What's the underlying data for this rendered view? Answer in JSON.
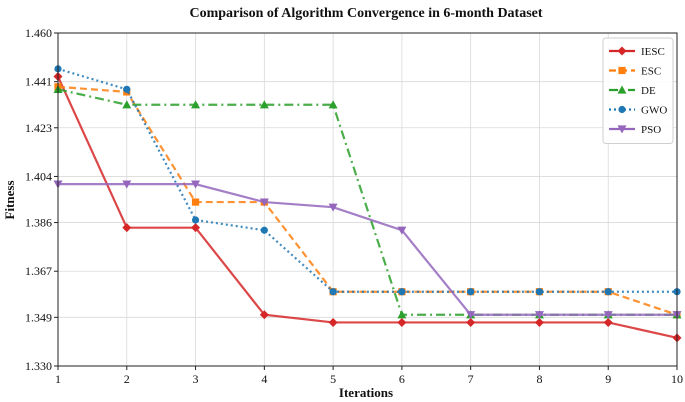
{
  "chart_data": {
    "type": "line",
    "title": "Comparison of Algorithm Convergence in 6-month Dataset",
    "xlabel": "Iterations",
    "ylabel": "Fitness",
    "x": [
      1,
      2,
      3,
      4,
      5,
      6,
      7,
      8,
      9,
      10
    ],
    "xlim": [
      1,
      10
    ],
    "ylim": [
      1.33,
      1.46
    ],
    "xticks": [
      "1",
      "2",
      "3",
      "4",
      "5",
      "6",
      "7",
      "8",
      "9",
      "10"
    ],
    "yticks": [
      "1.330",
      "1.349",
      "1.367",
      "1.386",
      "1.404",
      "1.423",
      "1.441",
      "1.460"
    ],
    "grid": true,
    "legend_position": "top-right",
    "series": [
      {
        "name": "IESC",
        "color": "#d62728",
        "line_style": "solid",
        "marker": "diamond",
        "values": [
          1.443,
          1.384,
          1.384,
          1.35,
          1.347,
          1.347,
          1.347,
          1.347,
          1.347,
          1.341
        ]
      },
      {
        "name": "ESC",
        "color": "#ff7f0e",
        "line_style": "dashed",
        "marker": "square",
        "values": [
          1.439,
          1.437,
          1.394,
          1.394,
          1.359,
          1.359,
          1.359,
          1.359,
          1.359,
          1.35
        ]
      },
      {
        "name": "DE",
        "color": "#2ca02c",
        "line_style": "dashdot",
        "marker": "triangle-up",
        "values": [
          1.438,
          1.432,
          1.432,
          1.432,
          1.432,
          1.35,
          1.35,
          1.35,
          1.35,
          1.35
        ]
      },
      {
        "name": "GWO",
        "color": "#1f77b4",
        "line_style": "dotted",
        "marker": "circle",
        "values": [
          1.446,
          1.438,
          1.387,
          1.383,
          1.359,
          1.359,
          1.359,
          1.359,
          1.359,
          1.359
        ]
      },
      {
        "name": "PSO",
        "color": "#9467bd",
        "line_style": "solid",
        "marker": "triangle-down",
        "values": [
          1.401,
          1.401,
          1.401,
          1.394,
          1.392,
          1.383,
          1.35,
          1.35,
          1.35,
          1.35
        ]
      }
    ]
  }
}
